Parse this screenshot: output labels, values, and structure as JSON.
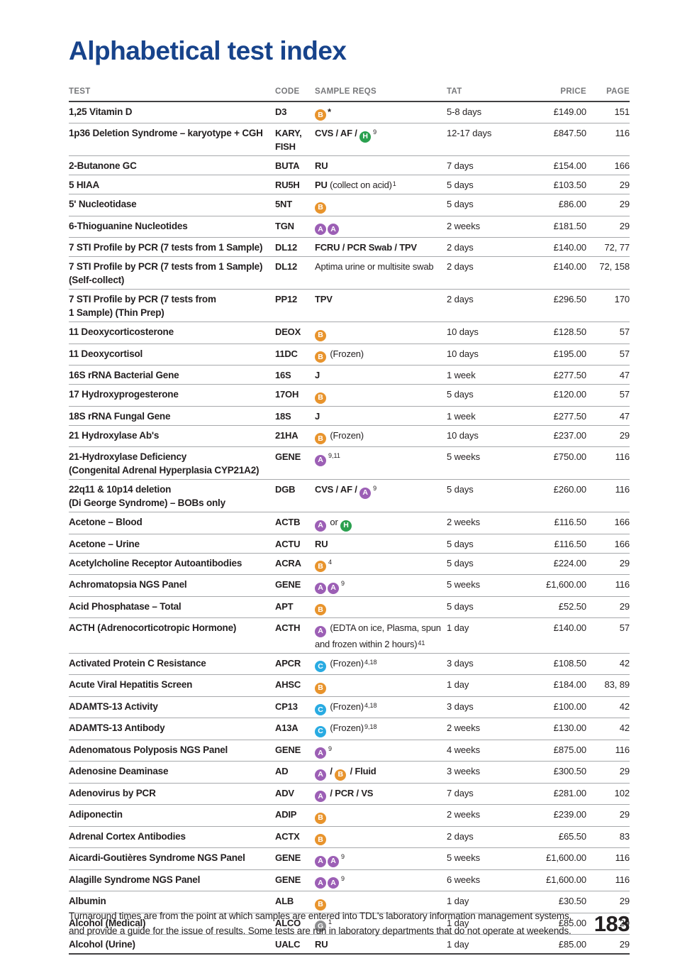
{
  "page": {
    "title": "Alphabetical test index",
    "page_number": "183",
    "footer_line1": "Turnaround times are from the point at which samples are entered into TDL's laboratory information management systems,",
    "footer_line2": "and provide a guide for the issue of results. Some tests are run in laboratory departments that do not operate at weekends."
  },
  "colors": {
    "title_navy": "#17438B",
    "header_gray": "#77787B",
    "rule_light": "#A7A9AC",
    "rule_dark": "#414042",
    "badge_colors": {
      "A": "#9C5FB5",
      "B": "#E8942D",
      "C": "#29ABE2",
      "H": "#2AA04F",
      "G": "#8D8E90"
    }
  },
  "table": {
    "headers": [
      "TEST",
      "CODE",
      "SAMPLE REQS",
      "TAT",
      "PRICE",
      "PAGE"
    ],
    "rows": [
      {
        "test": [
          "1,25 Vitamin D"
        ],
        "code": [
          "D3"
        ],
        "sample": [
          {
            "badge": "B"
          },
          {
            "t": "*",
            "b": true
          }
        ],
        "tat": "5-8 days",
        "price": "£149.00",
        "page": "151"
      },
      {
        "test": [
          "1p36 Deletion Syndrome – karyotype + CGH"
        ],
        "code": [
          "KARY,",
          "FISH"
        ],
        "sample": [
          {
            "t": "CVS / AF / ",
            "b": true
          },
          {
            "badge": "H"
          },
          {
            "sup": "9"
          }
        ],
        "tat": "12-17 days",
        "price": "£847.50",
        "page": "116"
      },
      {
        "test": [
          "2-Butanone GC"
        ],
        "code": [
          "BUTA"
        ],
        "sample": [
          {
            "t": "RU",
            "b": true
          }
        ],
        "tat": "7 days",
        "price": "£154.00",
        "page": "166"
      },
      {
        "test": [
          "5 HIAA"
        ],
        "code": [
          "RU5H"
        ],
        "sample": [
          {
            "t": "PU",
            "b": true
          },
          {
            "t": " (collect on acid)"
          },
          {
            "sup": "1"
          }
        ],
        "tat": "5 days",
        "price": "£103.50",
        "page": "29"
      },
      {
        "test": [
          "5' Nucleotidase"
        ],
        "code": [
          "5NT"
        ],
        "sample": [
          {
            "badge": "B"
          }
        ],
        "tat": "5 days",
        "price": "£86.00",
        "page": "29"
      },
      {
        "test": [
          "6-Thioguanine Nucleotides"
        ],
        "code": [
          "TGN"
        ],
        "sample": [
          {
            "badge": "A"
          },
          {
            "badge": "A"
          }
        ],
        "tat": "2 weeks",
        "price": "£181.50",
        "page": "29"
      },
      {
        "test": [
          "7 STI Profile by PCR (7 tests from 1 Sample)"
        ],
        "code": [
          "DL12"
        ],
        "sample": [
          {
            "t": "FCRU / PCR Swab / TPV",
            "b": true
          }
        ],
        "tat": "2 days",
        "price": "£140.00",
        "page": "72, 77"
      },
      {
        "test": [
          "7 STI Profile by PCR (7 tests from 1 Sample)",
          "(Self-collect)"
        ],
        "code": [
          "DL12"
        ],
        "sample": [
          {
            "t": "Aptima urine or multisite swab"
          }
        ],
        "tat": "2 days",
        "price": "£140.00",
        "page": "72, 158"
      },
      {
        "test": [
          "7 STI Profile by PCR (7 tests from",
          "1 Sample) (Thin Prep)"
        ],
        "code": [
          "PP12"
        ],
        "sample": [
          {
            "t": "TPV",
            "b": true
          }
        ],
        "tat": "2 days",
        "price": "£296.50",
        "page": "170"
      },
      {
        "test": [
          "11 Deoxycorticosterone"
        ],
        "code": [
          "DEOX"
        ],
        "sample": [
          {
            "badge": "B"
          }
        ],
        "tat": "10 days",
        "price": "£128.50",
        "page": "57"
      },
      {
        "test": [
          "11 Deoxycortisol"
        ],
        "code": [
          "11DC"
        ],
        "sample": [
          {
            "badge": "B"
          },
          {
            "t": " (Frozen)"
          }
        ],
        "tat": "10 days",
        "price": "£195.00",
        "page": "57"
      },
      {
        "test": [
          "16S rRNA Bacterial Gene"
        ],
        "code": [
          "16S"
        ],
        "sample": [
          {
            "t": "J",
            "b": true
          }
        ],
        "tat": "1 week",
        "price": "£277.50",
        "page": "47"
      },
      {
        "test": [
          "17 Hydroxyprogesterone"
        ],
        "code": [
          "17OH"
        ],
        "sample": [
          {
            "badge": "B"
          }
        ],
        "tat": "5 days",
        "price": "£120.00",
        "page": "57"
      },
      {
        "test": [
          "18S rRNA Fungal Gene"
        ],
        "code": [
          "18S"
        ],
        "sample": [
          {
            "t": "J",
            "b": true
          }
        ],
        "tat": "1 week",
        "price": "£277.50",
        "page": "47"
      },
      {
        "test": [
          "21 Hydroxylase Ab's"
        ],
        "code": [
          "21HA"
        ],
        "sample": [
          {
            "badge": "B"
          },
          {
            "t": " (Frozen)"
          }
        ],
        "tat": "10 days",
        "price": "£237.00",
        "page": "29"
      },
      {
        "test": [
          "21-Hydroxylase Deficiency",
          "(Congenital Adrenal Hyperplasia CYP21A2)"
        ],
        "code": [
          "GENE"
        ],
        "sample": [
          {
            "badge": "A"
          },
          {
            "sup": "9,11"
          }
        ],
        "tat": "5 weeks",
        "price": "£750.00",
        "page": "116"
      },
      {
        "test": [
          "22q11 & 10p14 deletion",
          "(Di George Syndrome) – BOBs only"
        ],
        "code": [
          "DGB"
        ],
        "sample": [
          {
            "t": "CVS / AF / ",
            "b": true
          },
          {
            "badge": "A"
          },
          {
            "sup": "9"
          }
        ],
        "tat": "5 days",
        "price": "£260.00",
        "page": "116"
      },
      {
        "test": [
          "Acetone – Blood"
        ],
        "code": [
          "ACTB"
        ],
        "sample": [
          {
            "badge": "A"
          },
          {
            "t": " or "
          },
          {
            "badge": "H"
          }
        ],
        "tat": "2 weeks",
        "price": "£116.50",
        "page": "166"
      },
      {
        "test": [
          "Acetone – Urine"
        ],
        "code": [
          "ACTU"
        ],
        "sample": [
          {
            "t": "RU",
            "b": true
          }
        ],
        "tat": "5 days",
        "price": "£116.50",
        "page": "166"
      },
      {
        "test": [
          "Acetylcholine Receptor Autoantibodies"
        ],
        "code": [
          "ACRA"
        ],
        "sample": [
          {
            "badge": "B"
          },
          {
            "sup": "4"
          }
        ],
        "tat": "5 days",
        "price": "£224.00",
        "page": "29"
      },
      {
        "test": [
          "Achromatopsia NGS Panel"
        ],
        "code": [
          "GENE"
        ],
        "sample": [
          {
            "badge": "A"
          },
          {
            "badge": "A"
          },
          {
            "sup": "9"
          }
        ],
        "tat": "5 weeks",
        "price": "£1,600.00",
        "page": "116"
      },
      {
        "test": [
          "Acid Phosphatase – Total"
        ],
        "code": [
          "APT"
        ],
        "sample": [
          {
            "badge": "B"
          }
        ],
        "tat": "5 days",
        "price": "£52.50",
        "page": "29"
      },
      {
        "test": [
          "ACTH (Adrenocorticotropic Hormone)"
        ],
        "code": [
          "ACTH"
        ],
        "sample": [
          {
            "badge": "A"
          },
          {
            "t": " (EDTA on ice, Plasma, spun and frozen within 2 hours)"
          },
          {
            "sup": "41"
          }
        ],
        "tat": "1 day",
        "price": "£140.00",
        "page": "57"
      },
      {
        "test": [
          "Activated Protein C Resistance"
        ],
        "code": [
          "APCR"
        ],
        "sample": [
          {
            "badge": "C"
          },
          {
            "t": " (Frozen)"
          },
          {
            "sup": "4,18"
          }
        ],
        "tat": "3 days",
        "price": "£108.50",
        "page": "42"
      },
      {
        "test": [
          "Acute Viral Hepatitis Screen"
        ],
        "code": [
          "AHSC"
        ],
        "sample": [
          {
            "badge": "B"
          }
        ],
        "tat": "1 day",
        "price": "£184.00",
        "page": "83, 89"
      },
      {
        "test": [
          "ADAMTS-13 Activity"
        ],
        "code": [
          "CP13"
        ],
        "sample": [
          {
            "badge": "C"
          },
          {
            "t": " (Frozen)"
          },
          {
            "sup": "4,18"
          }
        ],
        "tat": "3 days",
        "price": "£100.00",
        "page": "42"
      },
      {
        "test": [
          "ADAMTS-13 Antibody"
        ],
        "code": [
          "A13A"
        ],
        "sample": [
          {
            "badge": "C"
          },
          {
            "t": " (Frozen)"
          },
          {
            "sup": "9,18"
          }
        ],
        "tat": "2 weeks",
        "price": "£130.00",
        "page": "42"
      },
      {
        "test": [
          "Adenomatous Polyposis NGS Panel"
        ],
        "code": [
          "GENE"
        ],
        "sample": [
          {
            "badge": "A"
          },
          {
            "sup": "9"
          }
        ],
        "tat": "4 weeks",
        "price": "£875.00",
        "page": "116"
      },
      {
        "test": [
          "Adenosine Deaminase"
        ],
        "code": [
          "AD"
        ],
        "sample": [
          {
            "badge": "A"
          },
          {
            "t": " / ",
            "b": true
          },
          {
            "badge": "B"
          },
          {
            "t": " / Fluid",
            "b": true
          }
        ],
        "tat": "3 weeks",
        "price": "£300.50",
        "page": "29"
      },
      {
        "test": [
          "Adenovirus by PCR"
        ],
        "code": [
          "ADV"
        ],
        "sample": [
          {
            "badge": "A"
          },
          {
            "t": " / PCR / VS",
            "b": true
          }
        ],
        "tat": "7 days",
        "price": "£281.00",
        "page": "102"
      },
      {
        "test": [
          "Adiponectin"
        ],
        "code": [
          "ADIP"
        ],
        "sample": [
          {
            "badge": "B"
          }
        ],
        "tat": "2 weeks",
        "price": "£239.00",
        "page": "29"
      },
      {
        "test": [
          "Adrenal Cortex Antibodies"
        ],
        "code": [
          "ACTX"
        ],
        "sample": [
          {
            "badge": "B"
          }
        ],
        "tat": "2 days",
        "price": "£65.50",
        "page": "83"
      },
      {
        "test": [
          "Aicardi-Goutières Syndrome NGS Panel"
        ],
        "code": [
          "GENE"
        ],
        "sample": [
          {
            "badge": "A"
          },
          {
            "badge": "A"
          },
          {
            "sup": "9"
          }
        ],
        "tat": "5 weeks",
        "price": "£1,600.00",
        "page": "116"
      },
      {
        "test": [
          "Alagille Syndrome NGS Panel"
        ],
        "code": [
          "GENE"
        ],
        "sample": [
          {
            "badge": "A"
          },
          {
            "badge": "A"
          },
          {
            "sup": "9"
          }
        ],
        "tat": "6 weeks",
        "price": "£1,600.00",
        "page": "116"
      },
      {
        "test": [
          "Albumin"
        ],
        "code": [
          "ALB"
        ],
        "sample": [
          {
            "badge": "B"
          }
        ],
        "tat": "1 day",
        "price": "£30.50",
        "page": "29"
      },
      {
        "test": [
          "Alcohol (Medical)"
        ],
        "code": [
          "ALCO"
        ],
        "sample": [
          {
            "badge": "G"
          },
          {
            "sup": "1"
          }
        ],
        "tat": "1 day",
        "price": "£85.00",
        "page": "29"
      },
      {
        "test": [
          "Alcohol (Urine)"
        ],
        "code": [
          "UALC"
        ],
        "sample": [
          {
            "t": "RU",
            "b": true
          }
        ],
        "tat": "1 day",
        "price": "£85.00",
        "page": "29"
      }
    ]
  }
}
